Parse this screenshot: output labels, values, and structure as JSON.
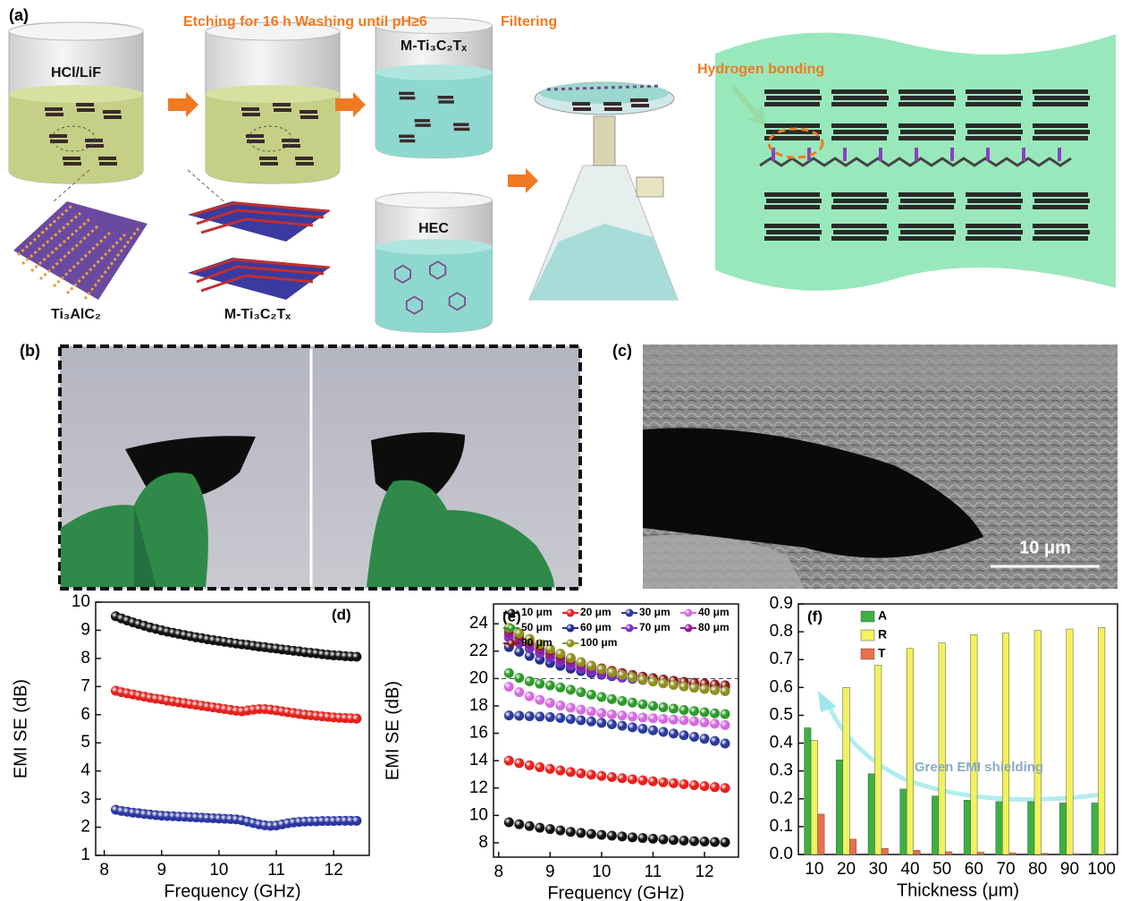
{
  "figure": {
    "a": {
      "label": "(a)",
      "steps": [
        "Etching for 16 h",
        "Washing until pH≥6",
        "Filtering"
      ],
      "beakers": [
        "HCl/LiF",
        "M-Ti₃C₂Tₓ",
        "HEC"
      ],
      "structures": [
        "Ti₃AlC₂",
        "M-Ti₃C₂Tₓ"
      ],
      "film": "Hydrogen bonding"
    },
    "b": {
      "label": "(b)"
    },
    "c": {
      "label": "(c)",
      "scale_bar": "10 μm"
    }
  },
  "chart_data": [
    {
      "type": "line",
      "marker": "circle",
      "label": "(d)",
      "x_label": "Frequency (GHz)",
      "y_label": "EMI SE (dB)",
      "x": [
        8.2,
        8.3,
        8.4,
        8.5,
        8.6,
        8.7,
        8.8,
        8.9,
        9,
        9.1,
        9.2,
        9.3,
        9.4,
        9.5,
        9.6,
        9.7,
        9.8,
        9.9,
        10,
        10.1,
        10.2,
        10.3,
        10.4,
        10.5,
        10.6,
        10.7,
        10.8,
        10.9,
        11,
        11.1,
        11.2,
        11.3,
        11.4,
        11.5,
        11.6,
        11.7,
        11.8,
        11.9,
        12,
        12.1,
        12.2,
        12.3,
        12.4
      ],
      "series": [
        {
          "color": "#111111",
          "values": [
            9.5,
            9.42,
            9.35,
            9.28,
            9.22,
            9.16,
            9.1,
            9.05,
            9.0,
            8.95,
            8.91,
            8.87,
            8.83,
            8.79,
            8.75,
            8.72,
            8.68,
            8.65,
            8.62,
            8.59,
            8.56,
            8.53,
            8.5,
            8.48,
            8.45,
            8.42,
            8.4,
            8.37,
            8.35,
            8.32,
            8.3,
            8.27,
            8.25,
            8.22,
            8.2,
            8.18,
            8.15,
            8.13,
            8.11,
            8.1,
            8.08,
            8.07,
            8.06
          ]
        },
        {
          "color": "#e3201b",
          "values": [
            6.85,
            6.8,
            6.76,
            6.72,
            6.68,
            6.64,
            6.6,
            6.57,
            6.54,
            6.5,
            6.47,
            6.44,
            6.41,
            6.38,
            6.35,
            6.32,
            6.29,
            6.26,
            6.23,
            6.2,
            6.17,
            6.14,
            6.12,
            6.15,
            6.18,
            6.2,
            6.2,
            6.18,
            6.15,
            6.12,
            6.09,
            6.06,
            6.03,
            6.0,
            5.98,
            5.96,
            5.94,
            5.92,
            5.9,
            5.89,
            5.88,
            5.87,
            5.86
          ]
        },
        {
          "color": "#2b36a0",
          "values": [
            2.62,
            2.58,
            2.55,
            2.52,
            2.5,
            2.47,
            2.45,
            2.43,
            2.41,
            2.4,
            2.39,
            2.38,
            2.37,
            2.36,
            2.35,
            2.34,
            2.33,
            2.32,
            2.31,
            2.3,
            2.29,
            2.28,
            2.25,
            2.2,
            2.15,
            2.1,
            2.07,
            2.05,
            2.06,
            2.1,
            2.14,
            2.17,
            2.19,
            2.2,
            2.21,
            2.21,
            2.22,
            2.22,
            2.22,
            2.23,
            2.23,
            2.23,
            2.23
          ]
        }
      ],
      "xlim": [
        7.85,
        12.62
      ],
      "xticks": [
        8,
        9,
        10,
        11,
        12
      ],
      "ylim": [
        1,
        10
      ],
      "yticks": [
        1,
        2,
        3,
        4,
        5,
        6,
        7,
        8,
        9,
        10
      ]
    },
    {
      "type": "line",
      "marker": "circle",
      "label": "(e)",
      "x_label": "Frequency (GHz)",
      "y_label": "EMI SE (dB)",
      "legend": "top",
      "hline": 20,
      "x": [
        8.2,
        8.4,
        8.6,
        8.8,
        9,
        9.2,
        9.4,
        9.6,
        9.8,
        10,
        10.2,
        10.4,
        10.6,
        10.8,
        11,
        11.2,
        11.4,
        11.6,
        11.8,
        12,
        12.2,
        12.4
      ],
      "series": [
        {
          "name": "10 μm",
          "color": "#111111",
          "values": [
            9.5,
            9.35,
            9.22,
            9.1,
            9.0,
            8.9,
            8.8,
            8.72,
            8.65,
            8.58,
            8.52,
            8.46,
            8.4,
            8.35,
            8.3,
            8.25,
            8.2,
            8.16,
            8.12,
            8.09,
            8.06,
            8.04
          ]
        },
        {
          "name": "20 μm",
          "color": "#e8201c",
          "values": [
            14.0,
            13.82,
            13.66,
            13.52,
            13.4,
            13.28,
            13.17,
            13.07,
            12.97,
            12.88,
            12.8,
            12.72,
            12.64,
            12.56,
            12.49,
            12.42,
            12.35,
            12.28,
            12.21,
            12.14,
            12.07,
            12.0
          ]
        },
        {
          "name": "30 μm",
          "color": "#2b3a9c",
          "values": [
            17.3,
            17.28,
            17.25,
            17.22,
            17.18,
            17.12,
            17.04,
            16.95,
            16.86,
            16.76,
            16.66,
            16.55,
            16.44,
            16.33,
            16.22,
            16.1,
            15.98,
            15.86,
            15.74,
            15.6,
            15.44,
            15.25
          ]
        },
        {
          "name": "40 μm",
          "color": "#d36be0",
          "values": [
            19.4,
            19.0,
            18.7,
            18.44,
            18.22,
            18.03,
            17.87,
            17.73,
            17.6,
            17.48,
            17.38,
            17.3,
            17.22,
            17.15,
            17.1,
            17.05,
            17.0,
            16.95,
            16.88,
            16.8,
            16.7,
            16.6
          ]
        },
        {
          "name": "50 μm",
          "color": "#2e9a2a",
          "values": [
            20.4,
            20.05,
            19.8,
            19.62,
            19.5,
            19.35,
            19.18,
            19.0,
            18.82,
            18.65,
            18.5,
            18.36,
            18.24,
            18.12,
            18.0,
            17.9,
            17.8,
            17.7,
            17.62,
            17.54,
            17.46,
            17.4
          ]
        },
        {
          "name": "60 μm",
          "color": "#23308a",
          "values": [
            22.3,
            21.95,
            21.65,
            21.38,
            21.14,
            20.92,
            20.72,
            20.55,
            20.4,
            20.28,
            20.17,
            20.07,
            19.98,
            19.9,
            19.83,
            19.76,
            19.7,
            19.64,
            19.58,
            19.52,
            19.46,
            19.4
          ]
        },
        {
          "name": "70 μm",
          "color": "#7b2fc8",
          "values": [
            23.0,
            22.6,
            22.2,
            21.85,
            21.52,
            21.22,
            20.95,
            20.72,
            20.52,
            20.36,
            20.22,
            20.1,
            20.0,
            19.9,
            19.82,
            19.74,
            19.66,
            19.58,
            19.5,
            19.44,
            19.38,
            19.32
          ]
        },
        {
          "name": "80 μm",
          "color": "#8e1f96",
          "values": [
            23.3,
            22.9,
            22.5,
            22.12,
            21.78,
            21.47,
            21.2,
            20.96,
            20.76,
            20.58,
            20.43,
            20.3,
            20.18,
            20.08,
            19.98,
            19.9,
            19.82,
            19.75,
            19.68,
            19.62,
            19.56,
            19.5
          ]
        },
        {
          "name": "90 μm",
          "color": "#8b1a1a",
          "values": [
            23.6,
            23.18,
            22.78,
            22.4,
            22.05,
            21.72,
            21.43,
            21.17,
            20.94,
            20.74,
            20.56,
            20.4,
            20.26,
            20.14,
            20.03,
            19.93,
            19.84,
            19.76,
            19.69,
            19.62,
            19.56,
            19.5
          ]
        },
        {
          "name": "100 μm",
          "color": "#8f8f1f",
          "values": [
            23.7,
            23.3,
            22.9,
            22.52,
            22.16,
            21.82,
            21.5,
            21.2,
            20.93,
            20.68,
            20.46,
            20.26,
            20.08,
            19.92,
            19.78,
            19.65,
            19.53,
            19.42,
            19.32,
            19.23,
            19.15,
            19.08
          ]
        }
      ],
      "xlim": [
        7.9,
        12.66
      ],
      "xticks": [
        8,
        9,
        10,
        11,
        12
      ],
      "ylim": [
        6.95,
        25.45
      ],
      "yticks": [
        8,
        10,
        12,
        14,
        16,
        18,
        20,
        22,
        24
      ]
    },
    {
      "type": "bar",
      "label": "(f)",
      "x_label": "Thickness (μm)",
      "legend": "upper left",
      "annotation": "Green EMI shielding",
      "categories": [
        "10",
        "20",
        "30",
        "40",
        "50",
        "60",
        "70",
        "80",
        "90",
        "100"
      ],
      "series": [
        {
          "name": "A",
          "color": "#3cb043",
          "values": [
            0.455,
            0.34,
            0.29,
            0.235,
            0.21,
            0.195,
            0.19,
            0.19,
            0.185,
            0.185
          ]
        },
        {
          "name": "R",
          "color": "#f2f25a",
          "values": [
            0.41,
            0.6,
            0.68,
            0.74,
            0.76,
            0.79,
            0.795,
            0.805,
            0.81,
            0.815
          ]
        },
        {
          "name": "T",
          "color": "#e8704a",
          "values": [
            0.145,
            0.055,
            0.022,
            0.015,
            0.01,
            0.008,
            0.006,
            0.004,
            0.003,
            0.002
          ]
        }
      ],
      "ylim": [
        0,
        0.9
      ],
      "yticks": [
        {
          "value": 0,
          "label": "0.0"
        },
        0.1,
        0.2,
        0.3,
        0.4,
        0.5,
        0.6,
        0.7,
        0.8,
        0.9
      ]
    }
  ]
}
